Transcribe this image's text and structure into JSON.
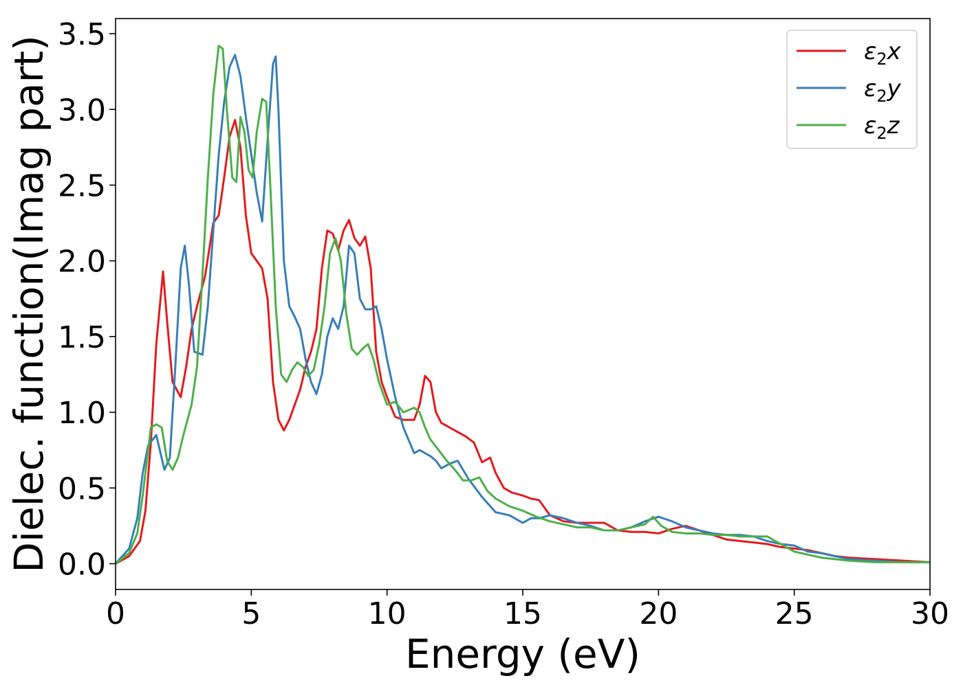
{
  "chart_data": {
    "type": "line",
    "xlabel": "Energy (eV)",
    "ylabel": "Dielec. function(Imag part)",
    "xlim": [
      0,
      30
    ],
    "ylim": [
      -0.17,
      3.6
    ],
    "xticks": [
      0,
      5,
      10,
      15,
      20,
      25,
      30
    ],
    "xtick_labels": [
      "0",
      "5",
      "10",
      "15",
      "20",
      "25",
      "30"
    ],
    "yticks": [
      0.0,
      0.5,
      1.0,
      1.5,
      2.0,
      2.5,
      3.0,
      3.5
    ],
    "ytick_labels": [
      "0.0",
      "0.5",
      "1.0",
      "1.5",
      "2.0",
      "2.5",
      "3.0",
      "3.5"
    ],
    "grid": false,
    "legend_position": "top-right",
    "series": [
      {
        "name": "ε₂x",
        "legend_main": "ε",
        "legend_sub": "2",
        "legend_suffix": "x",
        "color": "#e41a1c",
        "x": [
          0,
          0.5,
          0.9,
          1.1,
          1.3,
          1.5,
          1.75,
          1.9,
          2.1,
          2.4,
          2.6,
          2.8,
          3.0,
          3.3,
          3.6,
          3.8,
          4.0,
          4.2,
          4.4,
          4.6,
          4.8,
          5.0,
          5.2,
          5.4,
          5.6,
          5.8,
          6.0,
          6.2,
          6.4,
          6.6,
          6.8,
          7.0,
          7.2,
          7.4,
          7.6,
          7.8,
          8.0,
          8.2,
          8.4,
          8.6,
          8.8,
          9.0,
          9.2,
          9.4,
          9.6,
          9.8,
          10.0,
          10.3,
          10.6,
          11.0,
          11.2,
          11.4,
          11.6,
          11.8,
          12.0,
          12.3,
          12.6,
          12.9,
          13.2,
          13.5,
          13.8,
          14.0,
          14.3,
          14.6,
          15.0,
          15.3,
          15.6,
          16.0,
          16.5,
          17.0,
          17.5,
          18.0,
          18.5,
          19.0,
          19.5,
          20.0,
          20.5,
          21.0,
          21.5,
          22.0,
          22.5,
          23.0,
          23.5,
          24.0,
          24.5,
          25.0,
          25.5,
          26.0,
          26.5,
          27.0,
          28.0,
          29.0,
          30.0
        ],
        "y": [
          0.0,
          0.05,
          0.15,
          0.35,
          0.8,
          1.45,
          1.93,
          1.6,
          1.2,
          1.1,
          1.3,
          1.55,
          1.7,
          1.9,
          2.25,
          2.3,
          2.55,
          2.82,
          2.93,
          2.75,
          2.3,
          2.05,
          2.0,
          1.95,
          1.75,
          1.2,
          0.95,
          0.88,
          0.95,
          1.05,
          1.15,
          1.3,
          1.4,
          1.55,
          1.95,
          2.2,
          2.18,
          2.07,
          2.2,
          2.27,
          2.15,
          2.1,
          2.16,
          1.95,
          1.4,
          1.2,
          1.1,
          0.97,
          0.95,
          0.95,
          1.05,
          1.24,
          1.2,
          1.0,
          0.93,
          0.9,
          0.87,
          0.84,
          0.8,
          0.67,
          0.7,
          0.6,
          0.5,
          0.47,
          0.45,
          0.43,
          0.42,
          0.32,
          0.28,
          0.27,
          0.27,
          0.27,
          0.22,
          0.21,
          0.21,
          0.2,
          0.23,
          0.25,
          0.22,
          0.19,
          0.16,
          0.15,
          0.14,
          0.13,
          0.11,
          0.1,
          0.09,
          0.07,
          0.05,
          0.04,
          0.03,
          0.02,
          0.01
        ]
      },
      {
        "name": "ε₂y",
        "legend_main": "ε",
        "legend_sub": "2",
        "legend_suffix": "y",
        "color": "#377eb8",
        "x": [
          0,
          0.5,
          0.8,
          1.0,
          1.2,
          1.5,
          1.8,
          2.0,
          2.2,
          2.4,
          2.55,
          2.7,
          2.9,
          3.2,
          3.4,
          3.6,
          3.8,
          4.0,
          4.2,
          4.4,
          4.6,
          4.8,
          5.0,
          5.2,
          5.4,
          5.6,
          5.8,
          5.9,
          6.0,
          6.2,
          6.4,
          6.6,
          6.8,
          7.0,
          7.2,
          7.4,
          7.6,
          7.8,
          8.0,
          8.2,
          8.4,
          8.6,
          8.8,
          9.0,
          9.2,
          9.4,
          9.6,
          9.8,
          10.0,
          10.3,
          10.6,
          11.0,
          11.2,
          11.4,
          11.6,
          11.8,
          12.0,
          12.3,
          12.6,
          13.0,
          13.5,
          14.0,
          14.5,
          15.0,
          15.3,
          15.6,
          16.0,
          16.5,
          17.0,
          17.5,
          18.0,
          18.5,
          19.0,
          19.5,
          20.0,
          20.5,
          21.0,
          21.5,
          22.0,
          22.5,
          23.0,
          23.5,
          24.0,
          24.5,
          25.0,
          25.5,
          26.0,
          26.5,
          27.0,
          28.0,
          29.0,
          30.0
        ],
        "y": [
          0.0,
          0.1,
          0.3,
          0.6,
          0.78,
          0.85,
          0.62,
          0.7,
          1.3,
          1.95,
          2.1,
          1.85,
          1.4,
          1.38,
          1.7,
          2.2,
          2.7,
          3.05,
          3.28,
          3.36,
          3.22,
          2.95,
          2.7,
          2.45,
          2.26,
          2.8,
          3.3,
          3.35,
          3.0,
          2.0,
          1.7,
          1.63,
          1.55,
          1.35,
          1.2,
          1.12,
          1.25,
          1.5,
          1.62,
          1.55,
          1.7,
          2.1,
          2.05,
          1.75,
          1.68,
          1.68,
          1.7,
          1.55,
          1.35,
          1.1,
          0.9,
          0.73,
          0.75,
          0.73,
          0.71,
          0.68,
          0.63,
          0.66,
          0.68,
          0.56,
          0.44,
          0.34,
          0.32,
          0.27,
          0.3,
          0.3,
          0.32,
          0.3,
          0.27,
          0.25,
          0.22,
          0.22,
          0.24,
          0.28,
          0.31,
          0.28,
          0.24,
          0.22,
          0.2,
          0.19,
          0.19,
          0.18,
          0.15,
          0.13,
          0.12,
          0.08,
          0.07,
          0.05,
          0.03,
          0.02,
          0.01,
          0.01
        ]
      },
      {
        "name": "ε₂z",
        "legend_main": "ε",
        "legend_sub": "2",
        "legend_suffix": "z",
        "color": "#4daf4a",
        "x": [
          0,
          0.5,
          0.8,
          1.0,
          1.3,
          1.5,
          1.7,
          1.9,
          2.1,
          2.3,
          2.5,
          2.8,
          3.0,
          3.2,
          3.4,
          3.6,
          3.8,
          3.95,
          4.1,
          4.3,
          4.45,
          4.6,
          4.75,
          4.9,
          5.05,
          5.2,
          5.4,
          5.55,
          5.7,
          5.9,
          6.1,
          6.3,
          6.5,
          6.7,
          6.9,
          7.1,
          7.3,
          7.5,
          7.7,
          7.9,
          8.1,
          8.3,
          8.5,
          8.7,
          8.9,
          9.1,
          9.3,
          9.5,
          9.7,
          10.0,
          10.3,
          10.6,
          11.0,
          11.2,
          11.4,
          11.6,
          11.9,
          12.2,
          12.5,
          12.8,
          13.1,
          13.4,
          13.7,
          14.0,
          14.5,
          15.0,
          15.5,
          16.0,
          16.5,
          17.0,
          17.5,
          18.0,
          18.5,
          19.0,
          19.5,
          19.8,
          20.1,
          20.5,
          21.0,
          21.5,
          22.0,
          22.5,
          23.0,
          23.5,
          24.0,
          24.5,
          25.0,
          25.5,
          26.0,
          26.5,
          27.0,
          28.0,
          29.0,
          30.0
        ],
        "y": [
          0.0,
          0.07,
          0.2,
          0.45,
          0.9,
          0.92,
          0.9,
          0.68,
          0.62,
          0.7,
          0.85,
          1.05,
          1.3,
          1.9,
          2.55,
          3.1,
          3.42,
          3.4,
          3.0,
          2.55,
          2.52,
          2.95,
          2.85,
          2.6,
          2.55,
          2.85,
          3.07,
          3.05,
          2.5,
          1.7,
          1.25,
          1.2,
          1.28,
          1.33,
          1.3,
          1.24,
          1.28,
          1.45,
          1.7,
          2.05,
          2.15,
          2.0,
          1.65,
          1.42,
          1.38,
          1.42,
          1.45,
          1.35,
          1.2,
          1.05,
          1.07,
          1.0,
          1.03,
          1.0,
          0.9,
          0.82,
          0.75,
          0.68,
          0.62,
          0.55,
          0.55,
          0.57,
          0.48,
          0.43,
          0.38,
          0.35,
          0.31,
          0.28,
          0.26,
          0.24,
          0.24,
          0.22,
          0.22,
          0.24,
          0.26,
          0.31,
          0.25,
          0.21,
          0.2,
          0.2,
          0.19,
          0.19,
          0.18,
          0.18,
          0.18,
          0.13,
          0.08,
          0.06,
          0.04,
          0.03,
          0.02,
          0.01,
          0.01,
          0.01
        ]
      }
    ]
  }
}
